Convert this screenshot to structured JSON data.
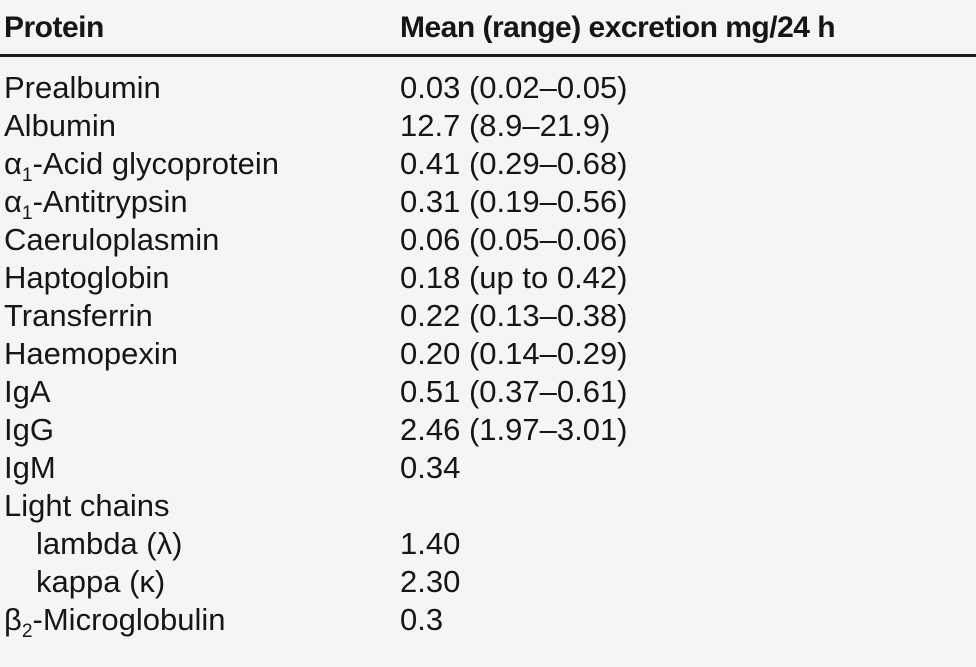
{
  "colors": {
    "background": "#f5f5f5",
    "text": "#161616",
    "header_rule": "#1c1c1c"
  },
  "table": {
    "columns": [
      {
        "key": "protein",
        "label": "Protein"
      },
      {
        "key": "excretion",
        "label": "Mean (range) excretion mg/24 h"
      }
    ],
    "rows": [
      {
        "protein": [
          {
            "text": "Prealbumin"
          }
        ],
        "value": "0.03 (0.02–0.05)",
        "indent": false
      },
      {
        "protein": [
          {
            "text": "Albumin"
          }
        ],
        "value": "12.7 (8.9–21.9)",
        "indent": false
      },
      {
        "protein": [
          {
            "text": "α"
          },
          {
            "text": "1",
            "sub": true
          },
          {
            "text": "-Acid glycoprotein"
          }
        ],
        "value": "0.41 (0.29–0.68)",
        "indent": false
      },
      {
        "protein": [
          {
            "text": "α"
          },
          {
            "text": "1",
            "sub": true
          },
          {
            "text": "-Antitrypsin"
          }
        ],
        "value": "0.31 (0.19–0.56)",
        "indent": false
      },
      {
        "protein": [
          {
            "text": "Caeruloplasmin"
          }
        ],
        "value": "0.06 (0.05–0.06)",
        "indent": false
      },
      {
        "protein": [
          {
            "text": "Haptoglobin"
          }
        ],
        "value": "0.18 (up to 0.42)",
        "indent": false
      },
      {
        "protein": [
          {
            "text": "Transferrin"
          }
        ],
        "value": "0.22 (0.13–0.38)",
        "indent": false
      },
      {
        "protein": [
          {
            "text": "Haemopexin"
          }
        ],
        "value": "0.20 (0.14–0.29)",
        "indent": false
      },
      {
        "protein": [
          {
            "text": "IgA"
          }
        ],
        "value": "0.51 (0.37–0.61)",
        "indent": false
      },
      {
        "protein": [
          {
            "text": "IgG"
          }
        ],
        "value": "2.46 (1.97–3.01)",
        "indent": false
      },
      {
        "protein": [
          {
            "text": "IgM"
          }
        ],
        "value": "0.34",
        "indent": false
      },
      {
        "protein": [
          {
            "text": "Light chains"
          }
        ],
        "value": "",
        "indent": false
      },
      {
        "protein": [
          {
            "text": "lambda (λ)"
          }
        ],
        "value": "1.40",
        "indent": true
      },
      {
        "protein": [
          {
            "text": "kappa (κ)"
          }
        ],
        "value": "2.30",
        "indent": true
      },
      {
        "protein": [
          {
            "text": "β"
          },
          {
            "text": "2",
            "sub": true
          },
          {
            "text": "-Microglobulin"
          }
        ],
        "value": "0.3",
        "indent": false
      }
    ]
  }
}
